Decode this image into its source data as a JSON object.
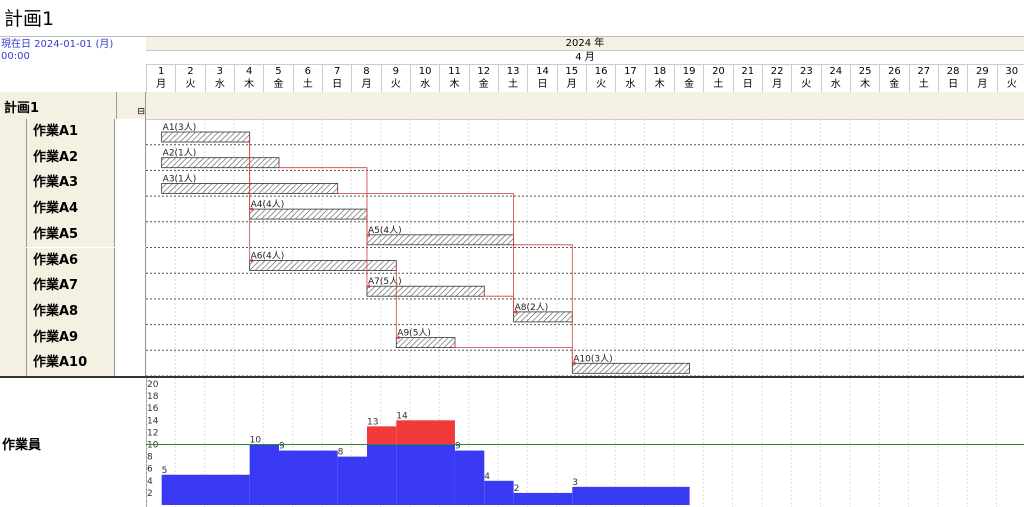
{
  "title": "計画1",
  "current_date": "現在日 2024-01-01 (月) 00:00",
  "year": "2024 年",
  "month": "4 月",
  "days": [
    {
      "n": "1",
      "w": "月"
    },
    {
      "n": "2",
      "w": "火"
    },
    {
      "n": "3",
      "w": "水"
    },
    {
      "n": "4",
      "w": "木"
    },
    {
      "n": "5",
      "w": "金"
    },
    {
      "n": "6",
      "w": "土"
    },
    {
      "n": "7",
      "w": "日"
    },
    {
      "n": "8",
      "w": "月"
    },
    {
      "n": "9",
      "w": "火"
    },
    {
      "n": "10",
      "w": "水"
    },
    {
      "n": "11",
      "w": "木"
    },
    {
      "n": "12",
      "w": "金"
    },
    {
      "n": "13",
      "w": "土"
    },
    {
      "n": "14",
      "w": "日"
    },
    {
      "n": "15",
      "w": "月"
    },
    {
      "n": "16",
      "w": "火"
    },
    {
      "n": "17",
      "w": "水"
    },
    {
      "n": "18",
      "w": "木"
    },
    {
      "n": "19",
      "w": "金"
    },
    {
      "n": "20",
      "w": "土"
    },
    {
      "n": "21",
      "w": "日"
    },
    {
      "n": "22",
      "w": "月"
    },
    {
      "n": "23",
      "w": "火"
    },
    {
      "n": "24",
      "w": "水"
    },
    {
      "n": "25",
      "w": "木"
    },
    {
      "n": "26",
      "w": "金"
    },
    {
      "n": "27",
      "w": "土"
    },
    {
      "n": "28",
      "w": "日"
    },
    {
      "n": "29",
      "w": "月"
    },
    {
      "n": "30",
      "w": "火"
    }
  ],
  "plan": {
    "name": "計画1",
    "collapse_symbol": "⊟"
  },
  "tasks": [
    {
      "label": "作業A1",
      "bar_label": "A1(3人)",
      "start": 1,
      "end": 4
    },
    {
      "label": "作業A2",
      "bar_label": "A2(1人)",
      "start": 1,
      "end": 5
    },
    {
      "label": "作業A3",
      "bar_label": "A3(1人)",
      "start": 1,
      "end": 7
    },
    {
      "label": "作業A4",
      "bar_label": "A4(4人)",
      "start": 4,
      "end": 8
    },
    {
      "label": "作業A5",
      "bar_label": "A5(4人)",
      "start": 8,
      "end": 13
    },
    {
      "label": "作業A6",
      "bar_label": "A6(4人)",
      "start": 4,
      "end": 9
    },
    {
      "label": "作業A7",
      "bar_label": "A7(5人)",
      "start": 8,
      "end": 12
    },
    {
      "label": "作業A8",
      "bar_label": "A8(2人)",
      "start": 13,
      "end": 15
    },
    {
      "label": "作業A9",
      "bar_label": "A9(5人)",
      "start": 9,
      "end": 11
    },
    {
      "label": "作業A10",
      "bar_label": "A10(3人)",
      "start": 15,
      "end": 19
    }
  ],
  "dependencies": [
    {
      "from": 1,
      "to": 4
    },
    {
      "from": 1,
      "to": 6
    },
    {
      "from": 2,
      "to": 5
    },
    {
      "from": 3,
      "to": 8
    },
    {
      "from": 4,
      "to": 7
    },
    {
      "from": 5,
      "to": 10
    },
    {
      "from": 6,
      "to": 9
    },
    {
      "from": 7,
      "to": 8
    },
    {
      "from": 9,
      "to": 10
    }
  ],
  "resource": {
    "label": "作業員",
    "limit": 10,
    "y_ticks": [
      "2",
      "4",
      "6",
      "8",
      "10",
      "12",
      "14",
      "16",
      "18",
      "20"
    ],
    "y_max": 20,
    "steps": [
      {
        "start": 1,
        "end": 4,
        "value": 5,
        "label": "5"
      },
      {
        "start": 4,
        "end": 5,
        "value": 10,
        "label": "10"
      },
      {
        "start": 5,
        "end": 7,
        "value": 9,
        "label": "9"
      },
      {
        "start": 7,
        "end": 8,
        "value": 8,
        "label": "8"
      },
      {
        "start": 8,
        "end": 9,
        "value": 13,
        "label": "13"
      },
      {
        "start": 9,
        "end": 11,
        "value": 14,
        "label": "14"
      },
      {
        "start": 11,
        "end": 12,
        "value": 9,
        "label": "9"
      },
      {
        "start": 12,
        "end": 13,
        "value": 4,
        "label": "4"
      },
      {
        "start": 13,
        "end": 15,
        "value": 2,
        "label": "2"
      },
      {
        "start": 15,
        "end": 19,
        "value": 3,
        "label": "3"
      }
    ]
  },
  "colors": {
    "bar_fill": "#3a3af5",
    "over_fill": "#f23a3a",
    "limit_line": "#2e8b2e",
    "dep_line": "#d04040"
  }
}
